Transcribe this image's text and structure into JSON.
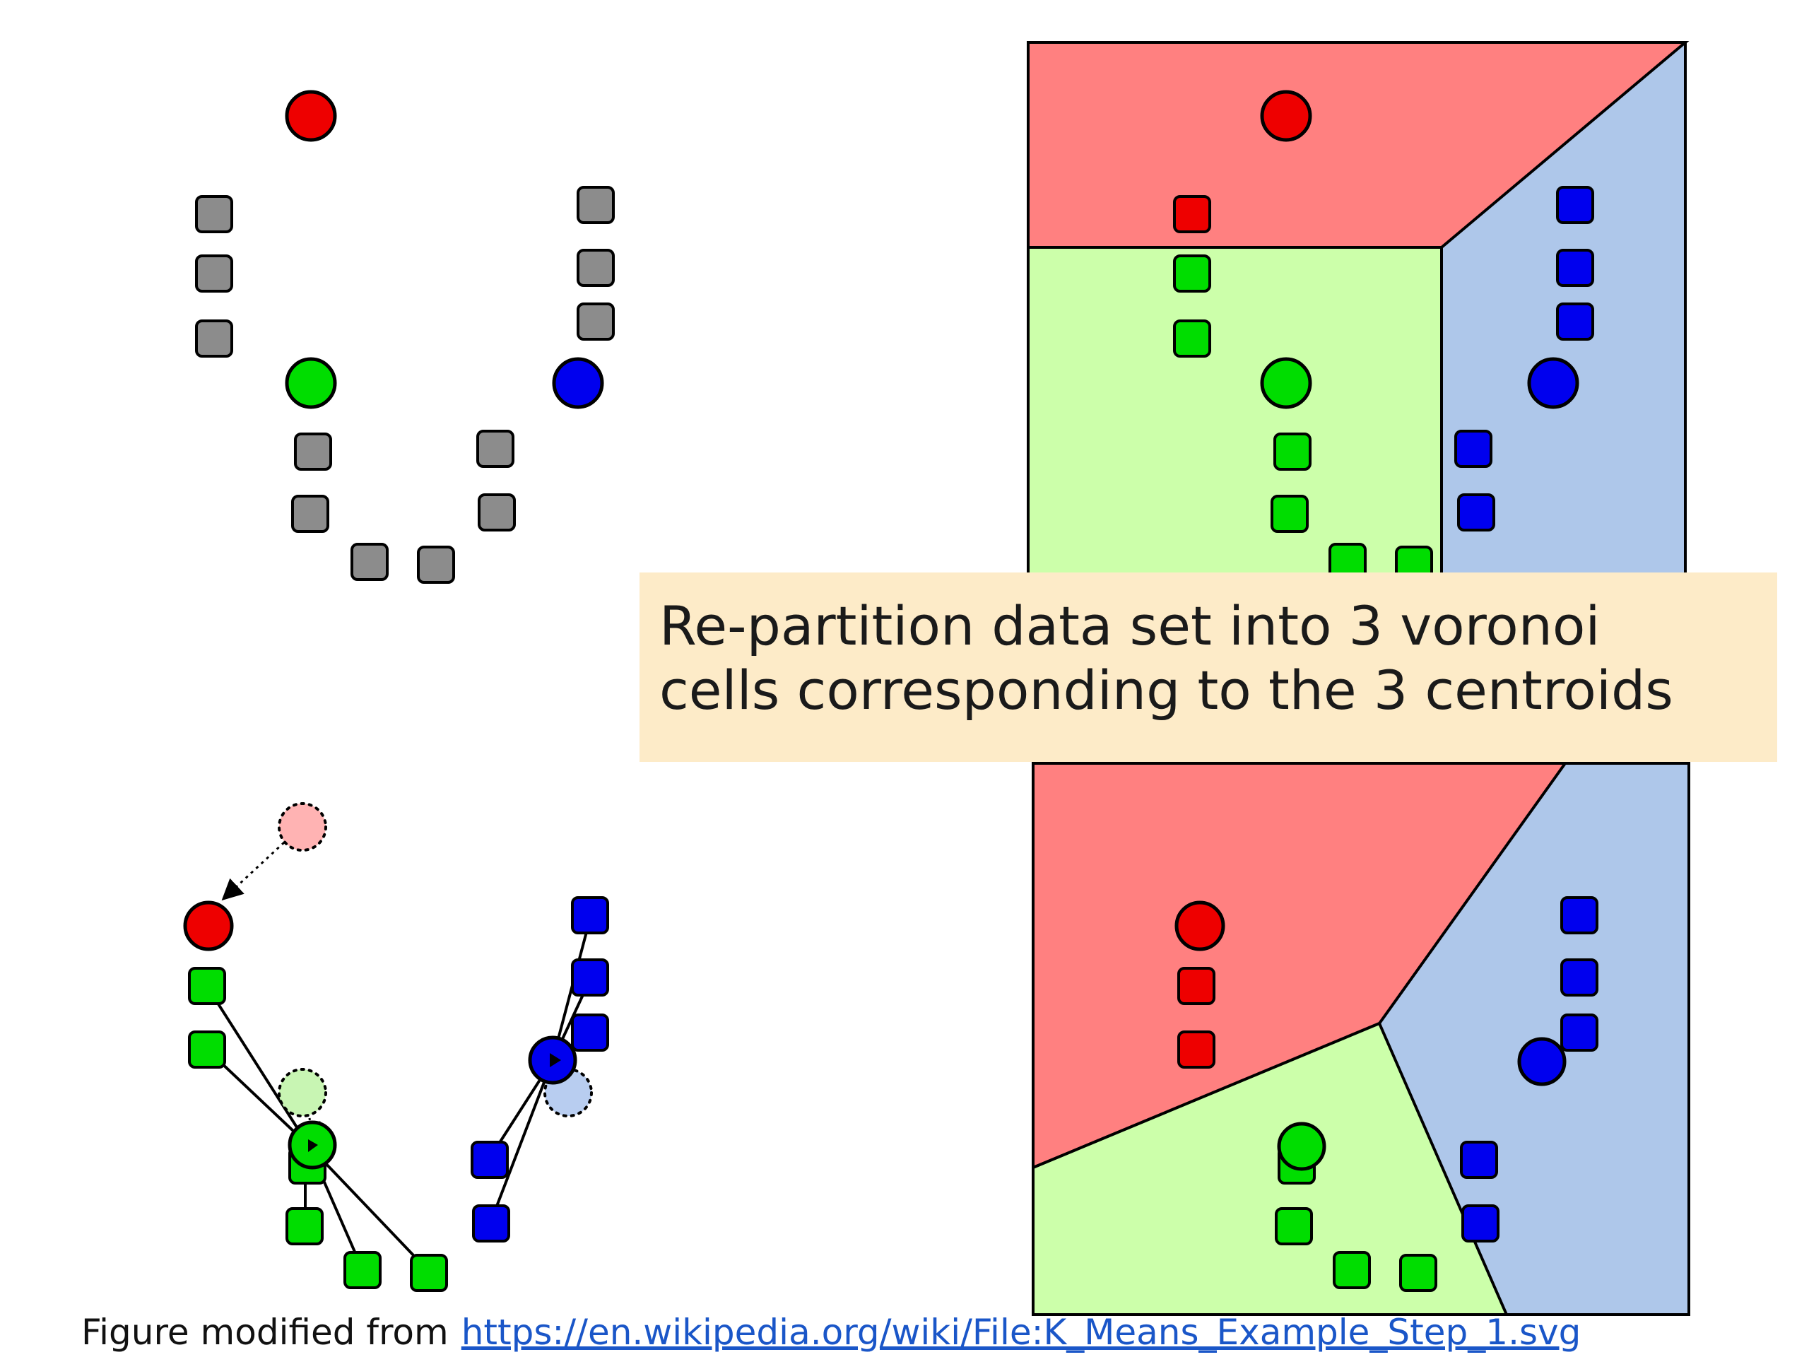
{
  "colors": {
    "red": "#ee0000",
    "green": "#00dd00",
    "blue": "#0000ee",
    "gray": "#8c8c8c",
    "region_red": "#ff8080",
    "region_green": "#ccffaa",
    "region_blue": "#aec7ea",
    "caption_bg": "#fdebc8",
    "link": "#1a56c8"
  },
  "icons": {
    "centroid": "circle",
    "data_point": "rounded-square",
    "old_centroid": "dashed-circle",
    "move_arrow": "dotted-arrow"
  },
  "caption": {
    "line1": "Re-partition data set into 3 voronoi",
    "line2": "cells corresponding to the 3 centroids"
  },
  "footer": {
    "label": "Figure modified from",
    "link_text": "https://en.wikipedia.org/wiki/File:K_Means_Example_Step_1.svg"
  }
}
